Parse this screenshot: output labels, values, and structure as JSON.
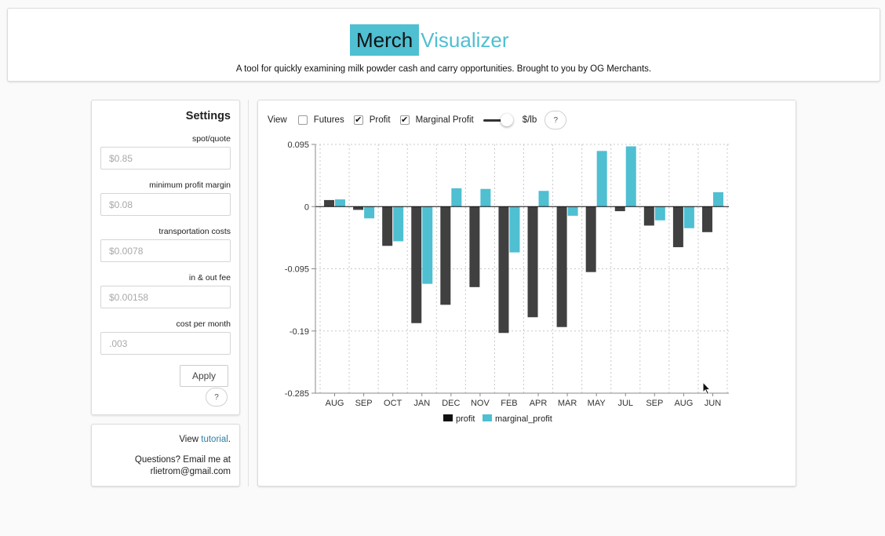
{
  "header": {
    "title_a": "Merch",
    "title_b": "Visualizer",
    "tagline": "A tool for quickly examining milk powder cash and carry opportunities. Brought to you by OG Merchants."
  },
  "settings": {
    "title": "Settings",
    "fields": [
      {
        "label": "spot/quote",
        "placeholder": "$0.85"
      },
      {
        "label": "minimum profit margin",
        "placeholder": "$0.08"
      },
      {
        "label": "transportation costs",
        "placeholder": "$0.0078"
      },
      {
        "label": "in & out fee",
        "placeholder": "$0.00158"
      },
      {
        "label": "cost per month",
        "placeholder": ".003"
      }
    ],
    "apply_label": "Apply",
    "help_label": "?"
  },
  "info": {
    "view_prefix": "View ",
    "tutorial_link": "tutorial",
    "view_suffix": ".",
    "questions": "Questions? Email me at",
    "email": "rlietrom@gmail.com"
  },
  "toolbar": {
    "view_label": "View",
    "futures_label": "Futures",
    "futures_checked": false,
    "profit_label": "Profit",
    "profit_checked": true,
    "marginal_label": "Marginal Profit",
    "marginal_checked": true,
    "unit_label": "$/lb",
    "help_label": "?"
  },
  "colors": {
    "brand": "#4fbfd2",
    "profit": "#404040",
    "marginal_profit": "#4fbfd2"
  },
  "chart_data": {
    "type": "bar",
    "categories": [
      "AUG",
      "SEP",
      "OCT",
      "JAN",
      "DEC",
      "NOV",
      "FEB",
      "APR",
      "MAR",
      "MAY",
      "JUL",
      "SEP",
      "AUG",
      "JUN"
    ],
    "series": [
      {
        "name": "profit",
        "values": [
          0.01,
          -0.005,
          -0.06,
          -0.178,
          -0.15,
          -0.123,
          -0.193,
          -0.169,
          -0.184,
          -0.1,
          -0.007,
          -0.029,
          -0.062,
          -0.039
        ]
      },
      {
        "name": "marginal_profit",
        "values": [
          0.011,
          -0.018,
          -0.053,
          -0.118,
          0.028,
          0.027,
          -0.07,
          0.024,
          -0.014,
          0.085,
          0.092,
          -0.021,
          -0.033,
          0.022
        ]
      }
    ],
    "yticks": [
      "0.095",
      "0",
      "-0.095",
      "-0.19",
      "-0.285"
    ],
    "ylim": [
      -0.285,
      0.095
    ],
    "grid": true,
    "legend": "bottom-center",
    "xlabel": "",
    "ylabel": ""
  }
}
